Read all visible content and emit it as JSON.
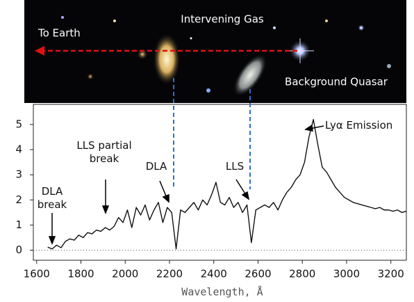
{
  "chart_data": {
    "type": "line",
    "image_labels": {
      "gas": "Intervening Gas",
      "earth": "To Earth",
      "quasar": "Background Quasar"
    },
    "annotations": {
      "dla_break": "DLA break",
      "lls_partial": "LLS partial break",
      "dla": "DLA",
      "lls": "LLS",
      "lya": "Lyα Emission"
    },
    "xlabel": "Wavelength, Å",
    "xlim": [
      1585,
      3270
    ],
    "ylim": [
      -0.4,
      5.8
    ],
    "xticks": [
      1600,
      1800,
      2000,
      2200,
      2400,
      2600,
      2800,
      3000,
      3200
    ],
    "yticks": [
      0,
      1,
      2,
      3,
      4,
      5
    ],
    "color": "#111111",
    "x": [
      1650,
      1670,
      1690,
      1710,
      1730,
      1750,
      1770,
      1790,
      1810,
      1830,
      1850,
      1870,
      1890,
      1910,
      1930,
      1950,
      1970,
      1990,
      2010,
      2030,
      2050,
      2070,
      2090,
      2110,
      2130,
      2150,
      2170,
      2190,
      2210,
      2230,
      2250,
      2270,
      2290,
      2310,
      2330,
      2350,
      2370,
      2390,
      2410,
      2430,
      2450,
      2470,
      2490,
      2510,
      2530,
      2550,
      2570,
      2590,
      2610,
      2630,
      2650,
      2670,
      2690,
      2710,
      2730,
      2750,
      2770,
      2790,
      2810,
      2830,
      2850,
      2870,
      2890,
      2910,
      2930,
      2950,
      2970,
      2990,
      3010,
      3030,
      3050,
      3070,
      3090,
      3110,
      3130,
      3150,
      3170,
      3190,
      3210,
      3230,
      3250,
      3270
    ],
    "values": [
      0.12,
      0.05,
      0.2,
      0.1,
      0.35,
      0.45,
      0.4,
      0.6,
      0.5,
      0.7,
      0.65,
      0.8,
      0.75,
      0.9,
      0.8,
      0.95,
      1.3,
      1.1,
      1.6,
      0.9,
      1.7,
      1.4,
      1.8,
      1.2,
      1.6,
      1.9,
      1.1,
      1.7,
      1.5,
      0.05,
      1.6,
      1.5,
      1.7,
      1.9,
      1.6,
      2.0,
      1.8,
      2.2,
      2.7,
      1.9,
      1.8,
      2.1,
      1.7,
      1.9,
      1.5,
      1.8,
      0.3,
      1.6,
      1.7,
      1.8,
      1.7,
      1.9,
      1.6,
      2.0,
      2.3,
      2.5,
      2.8,
      3.0,
      3.5,
      4.5,
      5.2,
      4.2,
      3.3,
      3.1,
      2.8,
      2.5,
      2.3,
      2.1,
      2.0,
      1.9,
      1.85,
      1.8,
      1.75,
      1.7,
      1.65,
      1.7,
      1.6,
      1.6,
      1.55,
      1.6,
      1.5,
      1.55
    ]
  }
}
